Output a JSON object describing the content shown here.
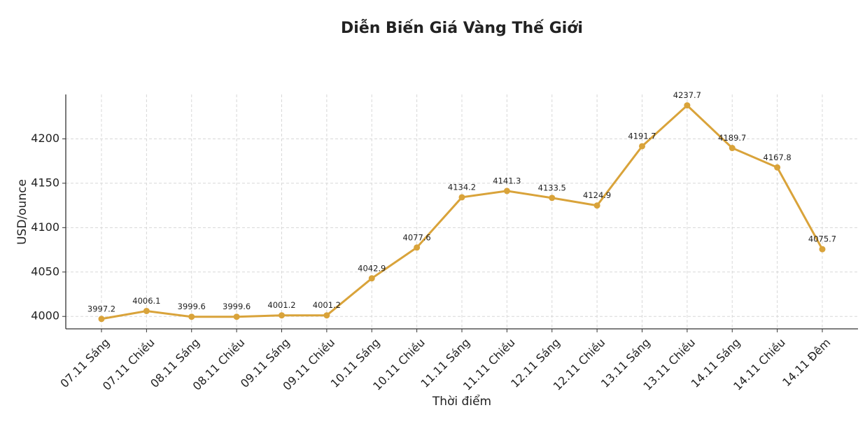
{
  "chart_data": {
    "type": "line",
    "title": "Diễn Biến Giá Vàng Thế Giới",
    "x_label": "Thời điểm",
    "y_label": "USD/ounce",
    "categories": [
      "07.11 Sáng",
      "07.11 Chiều",
      "08.11 Sáng",
      "08.11 Chiều",
      "09.11 Sáng",
      "09.11 Chiều",
      "10.11 Sáng",
      "10.11 Chiều",
      "11.11 Sáng",
      "11.11 Chiều",
      "12.11 Sáng",
      "12.11 Chiều",
      "13.11 Sáng",
      "13.11 Chiều",
      "14.11 Sáng",
      "14.11 Chiều",
      "14.11 Đêm"
    ],
    "values": [
      3997.2,
      4006.1,
      3999.6,
      3999.6,
      4001.2,
      4001.2,
      4042.9,
      4077.6,
      4134.2,
      4141.3,
      4133.5,
      4124.9,
      4191.7,
      4237.7,
      4189.7,
      4167.8,
      4075.7
    ],
    "color": "#d9a33a",
    "ylim": [
      3986,
      4250
    ],
    "yticks": [
      4000,
      4050,
      4100,
      4150,
      4200
    ],
    "grid": true
  }
}
